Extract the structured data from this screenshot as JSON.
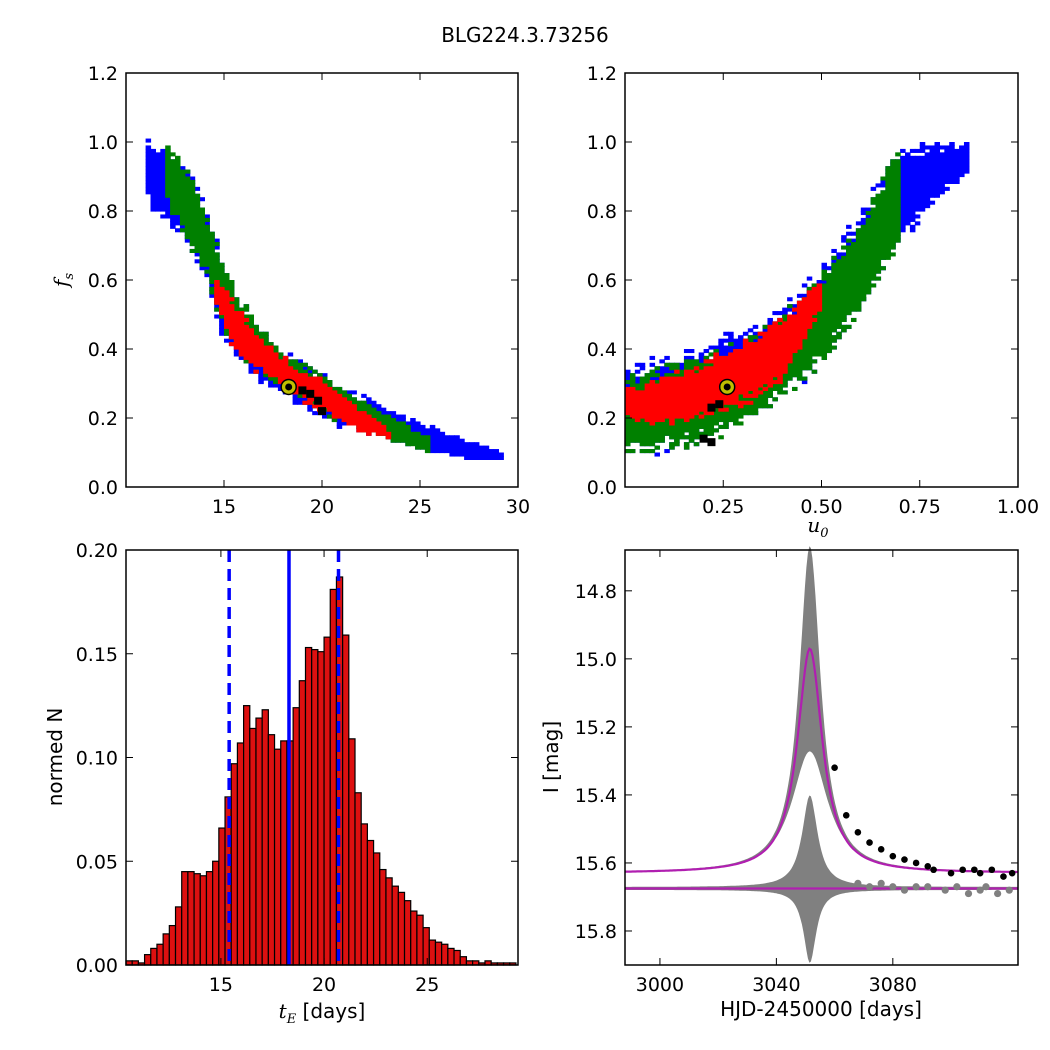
{
  "title": "BLG224.3.73256",
  "colors": {
    "sigma3": "#0000ff",
    "sigma2": "#008000",
    "sigma1": "#ff0000",
    "trail": "#000000",
    "best_fit_marker": "#bfbf00",
    "hist_bar": "#dd1010",
    "hist_lines": "#0000ff",
    "model_band": "#808080",
    "model_curve": "#b01fb0",
    "data_points": "#000000",
    "residual_points": "#808080"
  },
  "chart_data": [
    {
      "id": "panel_fs_vs_tE",
      "type": "heatmap",
      "xlabel": "",
      "ylabel": "f_s",
      "xlim": [
        10,
        30
      ],
      "ylim": [
        0,
        1.2
      ],
      "xticks": [
        "15",
        "20",
        "25",
        "30"
      ],
      "yticks": [
        "0.0",
        "0.2",
        "0.4",
        "0.6",
        "0.8",
        "1.0",
        "1.2"
      ],
      "confidence_regions": [
        {
          "level": "3sigma",
          "color": "blue",
          "ridge_x": [
            11,
            13,
            14,
            15,
            16,
            17,
            18,
            19,
            20,
            22,
            24,
            26,
            28,
            29.3
          ],
          "ridge_y": [
            0.92,
            0.83,
            0.72,
            0.53,
            0.44,
            0.38,
            0.33,
            0.3,
            0.26,
            0.21,
            0.17,
            0.13,
            0.1,
            0.09
          ],
          "half_width": [
            0.08,
            0.1,
            0.1,
            0.1,
            0.08,
            0.07,
            0.06,
            0.06,
            0.06,
            0.05,
            0.04,
            0.03,
            0.02,
            0.01
          ]
        },
        {
          "level": "2sigma",
          "color": "green",
          "ridge_x": [
            12,
            13,
            14,
            15,
            16,
            17,
            18,
            19,
            20,
            22,
            24,
            25.5
          ],
          "ridge_y": [
            0.92,
            0.83,
            0.72,
            0.55,
            0.45,
            0.39,
            0.34,
            0.3,
            0.27,
            0.21,
            0.16,
            0.12
          ],
          "half_width": [
            0.07,
            0.09,
            0.08,
            0.08,
            0.07,
            0.06,
            0.05,
            0.05,
            0.05,
            0.04,
            0.03,
            0.02
          ]
        },
        {
          "level": "1sigma",
          "color": "red",
          "ridge_x": [
            14.5,
            15.5,
            16.5,
            17.5,
            18.5,
            19.5,
            20.5,
            22,
            23.5
          ],
          "ridge_y": [
            0.58,
            0.47,
            0.4,
            0.36,
            0.31,
            0.28,
            0.25,
            0.19,
            0.15
          ],
          "half_width": [
            0.03,
            0.06,
            0.05,
            0.04,
            0.04,
            0.04,
            0.04,
            0.03,
            0.01
          ]
        }
      ],
      "trail_points": [
        [
          19.0,
          0.28
        ],
        [
          19.4,
          0.27
        ],
        [
          19.8,
          0.25
        ],
        [
          20.0,
          0.22
        ]
      ],
      "best_fit": {
        "x": 18.3,
        "y": 0.29
      }
    },
    {
      "id": "panel_fs_vs_u0",
      "type": "heatmap",
      "xlabel": "u_0",
      "ylabel": "",
      "xlim": [
        0,
        1.0
      ],
      "ylim": [
        0,
        1.2
      ],
      "xticks": [
        "0.25",
        "0.50",
        "0.75",
        "1.00"
      ],
      "yticks": [
        "0.0",
        "0.2",
        "0.4",
        "0.6",
        "0.8",
        "1.0",
        "1.2"
      ],
      "confidence_regions": [
        {
          "level": "3sigma",
          "color": "blue",
          "ridge_x": [
            0.0,
            0.1,
            0.2,
            0.3,
            0.4,
            0.5,
            0.6,
            0.7,
            0.8,
            0.87
          ],
          "ridge_y": [
            0.22,
            0.24,
            0.27,
            0.32,
            0.39,
            0.5,
            0.66,
            0.85,
            0.92,
            0.95
          ],
          "half_width": [
            0.11,
            0.12,
            0.12,
            0.12,
            0.12,
            0.12,
            0.12,
            0.12,
            0.07,
            0.04
          ]
        },
        {
          "level": "2sigma",
          "color": "green",
          "ridge_x": [
            0.0,
            0.1,
            0.2,
            0.3,
            0.4,
            0.5,
            0.6,
            0.7
          ],
          "ridge_y": [
            0.21,
            0.23,
            0.26,
            0.3,
            0.38,
            0.49,
            0.64,
            0.85
          ],
          "half_width": [
            0.1,
            0.11,
            0.11,
            0.11,
            0.11,
            0.11,
            0.11,
            0.13
          ]
        },
        {
          "level": "1sigma",
          "color": "red",
          "ridge_x": [
            0.0,
            0.1,
            0.2,
            0.3,
            0.4,
            0.45,
            0.5
          ],
          "ridge_y": [
            0.24,
            0.25,
            0.28,
            0.33,
            0.4,
            0.48,
            0.56
          ],
          "half_width": [
            0.04,
            0.06,
            0.07,
            0.08,
            0.08,
            0.06,
            0.03
          ]
        }
      ],
      "trail_points": [
        [
          0.22,
          0.23
        ],
        [
          0.24,
          0.24
        ],
        [
          0.2,
          0.14
        ],
        [
          0.22,
          0.13
        ]
      ],
      "best_fit": {
        "x": 0.26,
        "y": 0.29
      }
    },
    {
      "id": "panel_tE_histogram",
      "type": "bar",
      "xlabel": "t_E [days]",
      "ylabel": "normed N",
      "xlim": [
        10.4,
        29.4
      ],
      "ylim": [
        0,
        0.2
      ],
      "xticks": [
        "15",
        "20",
        "25"
      ],
      "yticks": [
        "0.00",
        "0.05",
        "0.10",
        "0.15",
        "0.20"
      ],
      "bin_start": 10.4,
      "bin_width": 0.3,
      "values": [
        0.002,
        0.002,
        0.001,
        0.005,
        0.008,
        0.01,
        0.015,
        0.019,
        0.028,
        0.045,
        0.045,
        0.044,
        0.043,
        0.045,
        0.05,
        0.066,
        0.081,
        0.097,
        0.107,
        0.125,
        0.114,
        0.119,
        0.123,
        0.111,
        0.104,
        0.108,
        0.108,
        0.124,
        0.137,
        0.153,
        0.152,
        0.151,
        0.158,
        0.181,
        0.187,
        0.159,
        0.109,
        0.083,
        0.068,
        0.06,
        0.054,
        0.046,
        0.042,
        0.038,
        0.035,
        0.031,
        0.026,
        0.024,
        0.018,
        0.012,
        0.011,
        0.01,
        0.008,
        0.007,
        0.004,
        0.002,
        0.002,
        0.001,
        0.002,
        0.001,
        0.001,
        0.001,
        0.001
      ],
      "median_line": 18.3,
      "interval_lines": [
        15.4,
        20.7
      ]
    },
    {
      "id": "panel_lightcurve",
      "type": "line",
      "xlabel": "HJD-2450000 [days]",
      "ylabel": "I [mag]",
      "xlim": [
        2988,
        3123
      ],
      "ylim": [
        15.9,
        14.68
      ],
      "xticks": [
        "3000",
        "3040",
        "3080"
      ],
      "yticks": [
        "14.8",
        "15.0",
        "15.2",
        "15.4",
        "15.6",
        "15.8"
      ],
      "model": {
        "t0": 3051.5,
        "tE": 10.0,
        "baseline": 15.63,
        "peak": 14.97
      },
      "baseline_line": 15.675,
      "band_upper_peak": 14.67,
      "band_lower_peak": 15.27,
      "residual_band_lower": 15.89,
      "data_points": [
        [
          3060,
          15.32
        ],
        [
          3064,
          15.46
        ],
        [
          3068,
          15.51
        ],
        [
          3072,
          15.54
        ],
        [
          3076,
          15.56
        ],
        [
          3080,
          15.58
        ],
        [
          3084,
          15.59
        ],
        [
          3088,
          15.6
        ],
        [
          3092,
          15.61
        ],
        [
          3094,
          15.62
        ],
        [
          3100,
          15.63
        ],
        [
          3104,
          15.62
        ],
        [
          3108,
          15.62
        ],
        [
          3110,
          15.63
        ],
        [
          3114,
          15.62
        ],
        [
          3118,
          15.64
        ],
        [
          3121,
          15.63
        ]
      ],
      "residual_points": [
        [
          3068,
          15.66
        ],
        [
          3072,
          15.67
        ],
        [
          3076,
          15.66
        ],
        [
          3080,
          15.67
        ],
        [
          3084,
          15.68
        ],
        [
          3088,
          15.67
        ],
        [
          3092,
          15.67
        ],
        [
          3098,
          15.68
        ],
        [
          3102,
          15.67
        ],
        [
          3106,
          15.69
        ],
        [
          3110,
          15.68
        ],
        [
          3112,
          15.67
        ],
        [
          3116,
          15.69
        ],
        [
          3120,
          15.68
        ]
      ]
    }
  ]
}
